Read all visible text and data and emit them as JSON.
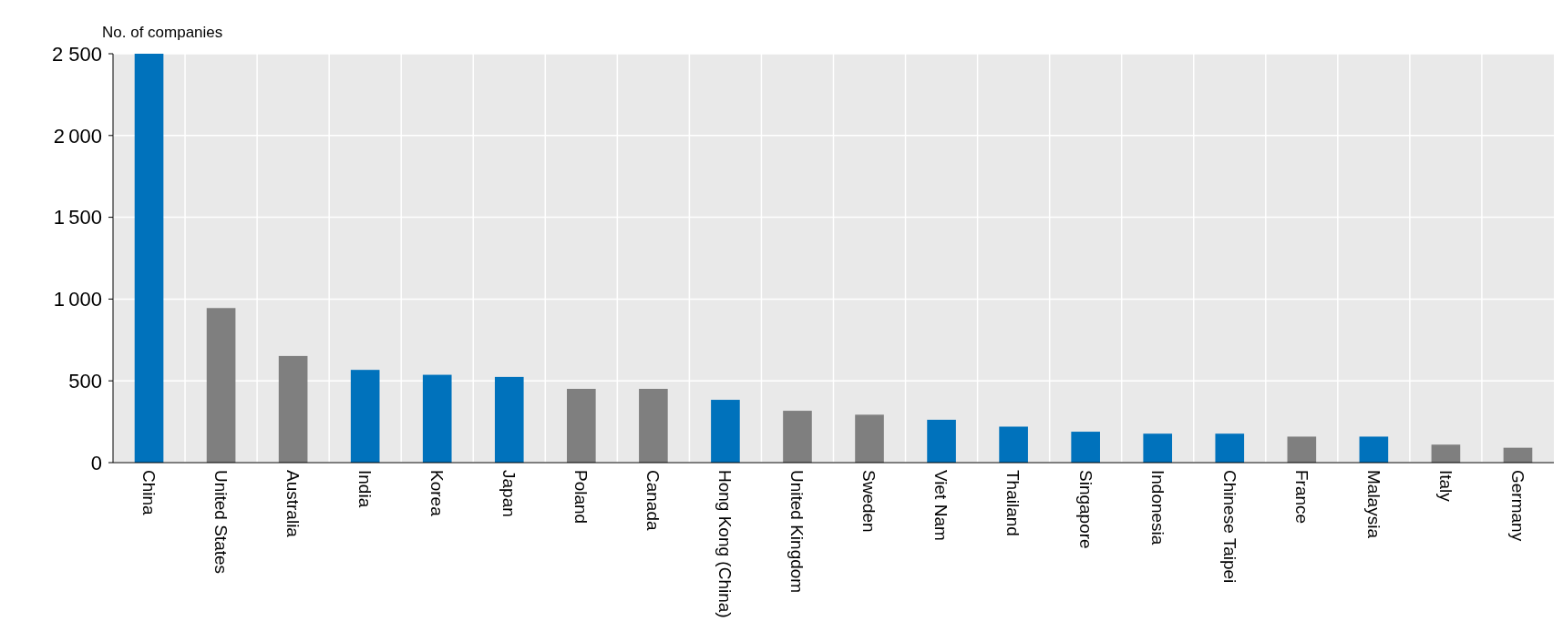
{
  "chart_data": {
    "type": "bar",
    "ylabel": "No. of companies",
    "categories": [
      "China",
      "United States",
      "Australia",
      "India",
      "Korea",
      "Japan",
      "Poland",
      "Canada",
      "Hong Kong (China)",
      "United Kingdom",
      "Sweden",
      "Viet Nam",
      "Thailand",
      "Singapore",
      "Indonesia",
      "Chinese Taipei",
      "France",
      "Malaysia",
      "Italy",
      "Germany"
    ],
    "values": [
      2500,
      945,
      652,
      567,
      537,
      524,
      451,
      451,
      384,
      317,
      293,
      262,
      220,
      189,
      177,
      177,
      159,
      159,
      110,
      91
    ],
    "colors": [
      "#0072bc",
      "#7f7f7f",
      "#7f7f7f",
      "#0072bc",
      "#0072bc",
      "#0072bc",
      "#7f7f7f",
      "#7f7f7f",
      "#0072bc",
      "#7f7f7f",
      "#7f7f7f",
      "#0072bc",
      "#0072bc",
      "#0072bc",
      "#0072bc",
      "#0072bc",
      "#7f7f7f",
      "#0072bc",
      "#7f7f7f",
      "#7f7f7f"
    ],
    "ylim": [
      0,
      2500
    ],
    "yticks": [
      0,
      500,
      1000,
      1500,
      2000,
      {
        "value": 2500,
        "label": "2 500"
      }
    ],
    "grid": true
  }
}
